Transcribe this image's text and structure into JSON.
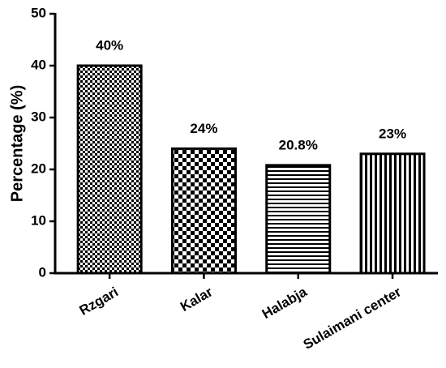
{
  "chart_data": {
    "type": "bar",
    "y_label": "Percentage (%)",
    "categories": [
      "Rzgari",
      "Kalar",
      "Halabja",
      "Sulaimani center"
    ],
    "values": [
      40,
      24,
      20.8,
      23
    ],
    "value_labels": [
      "40%",
      "24%",
      "20.8%",
      "23%"
    ],
    "ylim": [
      0,
      50
    ],
    "yticks": [
      0,
      10,
      20,
      30,
      40,
      50
    ]
  }
}
